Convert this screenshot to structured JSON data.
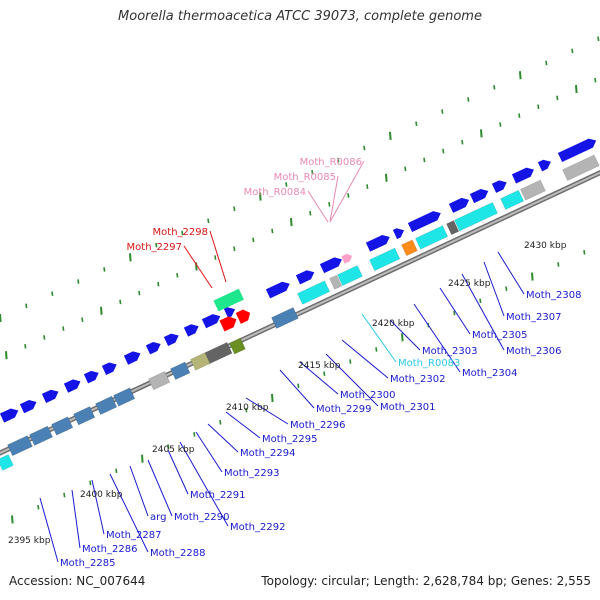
{
  "title": "Moorella thermoacetica ATCC 39073, complete genome",
  "footer": {
    "accession": "Accession: NC_007644",
    "summary": "Topology: circular; Length: 2,628,784 bp; Genes: 2,555"
  },
  "colors": {
    "backbone": "#8c8c8c",
    "tick": "#2e8b2e",
    "cds": "#1414e6",
    "cds_label": "#1a1ad0",
    "rna_label": "#e98ab4",
    "rna_label_cyan": "#2ec8e8",
    "red_label": "#d81414",
    "feature_cyan": "#1ee6e6",
    "feature_steelblue": "#4a80b4",
    "feature_gray": "#b4b4b4",
    "feature_darkgray": "#646464",
    "feature_olive": "#b4b478",
    "feature_green": "#6b8e23",
    "feature_orange": "#ff8c1a",
    "feature_spring": "#1ee68c",
    "feature_red": "#ff0000",
    "feature_pink": "#ffa0c8"
  },
  "kbp_labels": [
    "2395 kbp",
    "2400 kbp",
    "2405 kbp",
    "2410 kbp",
    "2415 kbp",
    "2420 kbp",
    "2425 kbp",
    "2430 kbp"
  ],
  "gene_labels": [
    "Moth_2285",
    "Moth_2286",
    "Moth_2287",
    "Moth_2288",
    "arg",
    "Moth_2290",
    "Moth_2291",
    "Moth_2292",
    "Moth_2293",
    "Moth_2294",
    "Moth_2295",
    "Moth_2296",
    "Moth_2299",
    "Moth_2300",
    "Moth_2301",
    "Moth_2302",
    "Moth_R0083",
    "Moth_2303",
    "Moth_2304",
    "Moth_2305",
    "Moth_2306",
    "Moth_2307",
    "Moth_2308"
  ],
  "red_labels": [
    "Moth_2298",
    "Moth_2297"
  ],
  "rna_labels": [
    "Moth_R0086",
    "Moth_R0085",
    "Moth_R0084"
  ]
}
